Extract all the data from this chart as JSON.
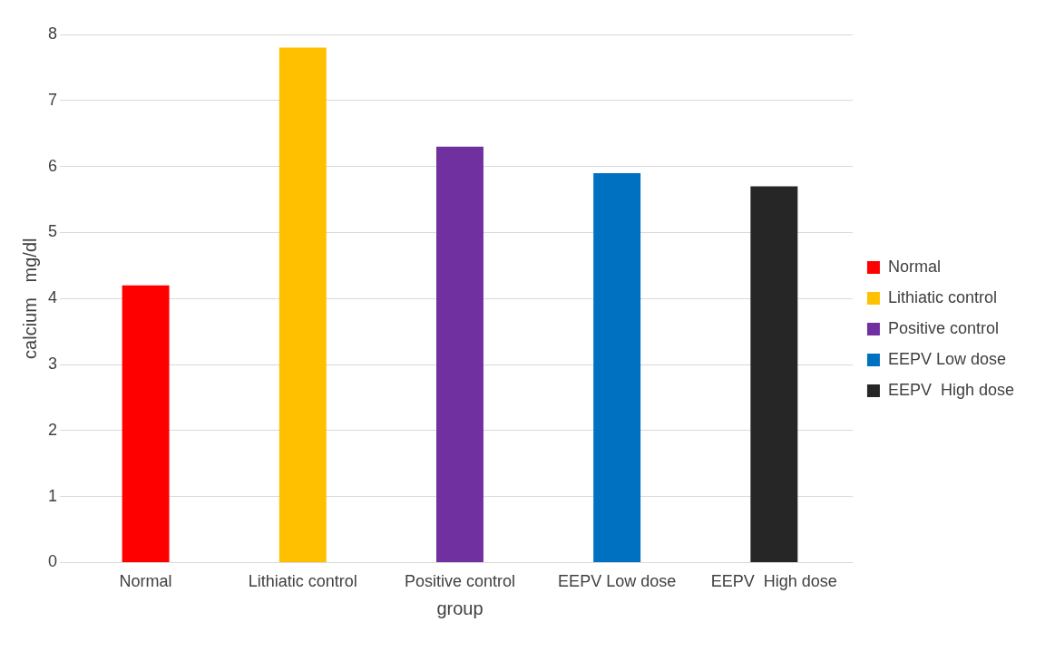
{
  "chart_data": {
    "type": "bar",
    "xlabel": "group",
    "ylabel": "calcium   mg/dl",
    "categories": [
      "Normal",
      "Lithiatic control",
      "Positive control",
      "EEPV Low dose",
      "EEPV  High dose"
    ],
    "series": [
      {
        "name": "Normal",
        "color": "#ff0000",
        "values": [
          4.2,
          null,
          null,
          null,
          null
        ]
      },
      {
        "name": "Lithiatic control",
        "color": "#ffc000",
        "values": [
          null,
          7.8,
          null,
          null,
          null
        ]
      },
      {
        "name": "Positive control",
        "color": "#7030a0",
        "values": [
          null,
          null,
          6.3,
          null,
          null
        ]
      },
      {
        "name": "EEPV Low dose",
        "color": "#0070c0",
        "values": [
          null,
          null,
          null,
          5.9,
          null
        ]
      },
      {
        "name": "EEPV  High dose",
        "color": "#262626",
        "values": [
          null,
          null,
          null,
          null,
          5.7
        ]
      }
    ],
    "ylim": [
      0,
      8
    ],
    "yticks": [
      0,
      1,
      2,
      3,
      4,
      5,
      6,
      7,
      8
    ],
    "grid": "y",
    "legend": "right"
  }
}
